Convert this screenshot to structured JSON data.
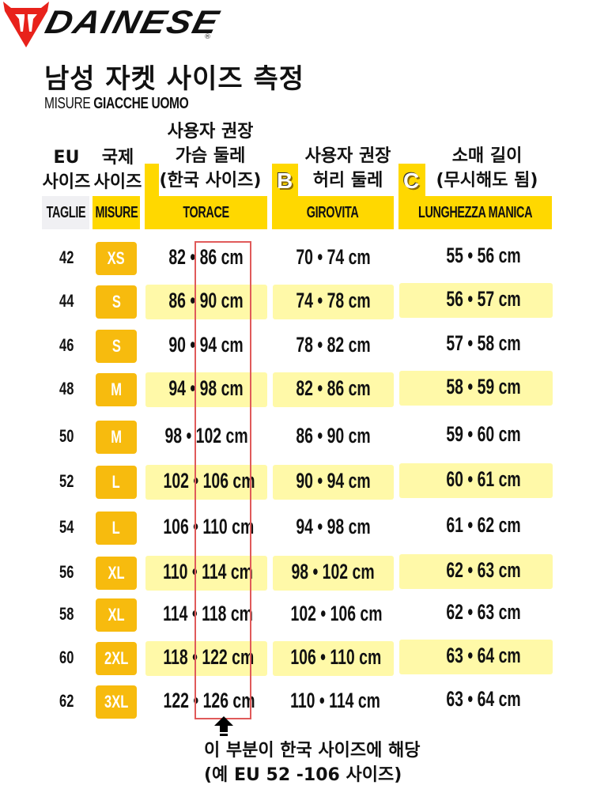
{
  "brand": {
    "logo_icon": "dainese-devil-shield-icon",
    "name": "DAINESE",
    "registered_mark": "®",
    "logo_color": "#e8221b"
  },
  "title": "남성 자켓 사이즈 측정",
  "subtitle": {
    "light": "MISURE",
    "bold": "GIACCHE UOMO"
  },
  "columns": [
    {
      "id": "eu",
      "ko_lines": [
        "EU",
        "사이즈"
      ],
      "it_label": "TAGLIE",
      "band_color": "#f0f0f3"
    },
    {
      "id": "intl",
      "ko_lines": [
        "국제",
        "사이즈"
      ],
      "it_label": "MISURE",
      "band_color": "#ffd800"
    },
    {
      "id": "chest",
      "ko_lines": [
        "사용자 권장",
        "가슴 둘레",
        "(한국 사이즈)"
      ],
      "it_label": "TORACE",
      "band_color": "#ffd800",
      "badge": ""
    },
    {
      "id": "waist",
      "ko_lines": [
        "사용자 권장",
        "허리 둘레"
      ],
      "it_label": "GIROVITA",
      "band_color": "#ffd800",
      "badge": "B"
    },
    {
      "id": "sleeve",
      "ko_lines": [
        "소매 길이",
        "(무시해도 됨)"
      ],
      "it_label": "LUNGHEZZA MANICA",
      "band_color": "#ffd800",
      "badge": "C"
    }
  ],
  "rows": [
    {
      "eu": "42",
      "intl": "XS",
      "chest": "82 • 86 cm",
      "waist": "70 • 74 cm",
      "sleeve": "55 • 56 cm",
      "highlight": false
    },
    {
      "eu": "44",
      "intl": "S",
      "chest": "86 • 90 cm",
      "waist": "74 • 78 cm",
      "sleeve": "56 • 57 cm",
      "highlight": true
    },
    {
      "eu": "46",
      "intl": "S",
      "chest": "90 • 94 cm",
      "waist": "78 • 82 cm",
      "sleeve": "57 • 58 cm",
      "highlight": false
    },
    {
      "eu": "48",
      "intl": "M",
      "chest": "94 • 98 cm",
      "waist": "82 • 86 cm",
      "sleeve": "58 • 59 cm",
      "highlight": true
    },
    {
      "eu": "50",
      "intl": "M",
      "chest": "98 • 102 cm",
      "waist": "86 • 90 cm",
      "sleeve": "59 • 60 cm",
      "highlight": false
    },
    {
      "eu": "52",
      "intl": "L",
      "chest": "102 • 106 cm",
      "waist": "90 • 94 cm",
      "sleeve": "60 • 61 cm",
      "highlight": true
    },
    {
      "eu": "54",
      "intl": "L",
      "chest": "106 • 110 cm",
      "waist": "94 • 98 cm",
      "sleeve": "61 • 62 cm",
      "highlight": false
    },
    {
      "eu": "56",
      "intl": "XL",
      "chest": "110 • 114 cm",
      "waist": "98 • 102 cm",
      "sleeve": "62 • 63 cm",
      "highlight": true
    },
    {
      "eu": "58",
      "intl": "XL",
      "chest": "114 • 118 cm",
      "waist": "102 • 106 cm",
      "sleeve": "62 • 63 cm",
      "highlight": false
    },
    {
      "eu": "60",
      "intl": "2XL",
      "chest": "118 • 122 cm",
      "waist": "106 • 110 cm",
      "sleeve": "63 • 64 cm",
      "highlight": true
    },
    {
      "eu": "62",
      "intl": "3XL",
      "chest": "122 • 126 cm",
      "waist": "110 • 114 cm",
      "sleeve": "63 • 64 cm",
      "highlight": false
    }
  ],
  "annotation": {
    "arrow_icon": "up-arrow-icon",
    "box_color": "#e05a5a",
    "line1": "이 부분이 한국 사이즈에 해당",
    "line2": "(예 EU 52 -106 사이즈)"
  },
  "colors": {
    "band_yellow": "#ffd800",
    "row_highlight": "#fff9a8",
    "size_pill": "#f7bb0e"
  }
}
